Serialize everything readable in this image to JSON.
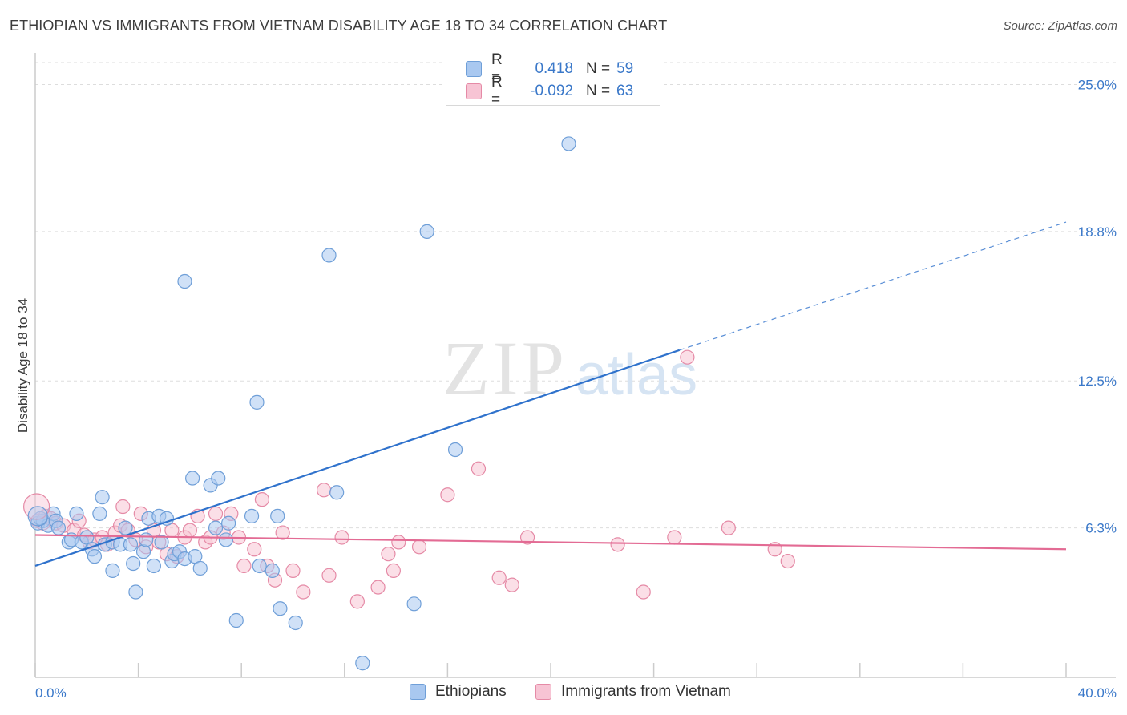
{
  "header": {
    "title": "ETHIOPIAN VS IMMIGRANTS FROM VIETNAM DISABILITY AGE 18 TO 34 CORRELATION CHART",
    "source": "Source: ZipAtlas.com"
  },
  "watermark": {
    "zip": "ZIP",
    "atlas": "atlas"
  },
  "legend": {
    "rows": [
      {
        "r_label": "R =",
        "r_value": "0.418",
        "n_label": "N =",
        "n_value": "59",
        "color": "#a9c8f0",
        "stroke": "#6f9fd8"
      },
      {
        "r_label": "R =",
        "r_value": "-0.092",
        "n_label": "N =",
        "n_value": "63",
        "color": "#f7c4d4",
        "stroke": "#e58aa6"
      }
    ]
  },
  "bottom_legend": {
    "items": [
      {
        "label": "Ethiopians",
        "color": "#a9c8f0",
        "stroke": "#6f9fd8"
      },
      {
        "label": "Immigrants from Vietnam",
        "color": "#f7c4d4",
        "stroke": "#e58aa6"
      }
    ]
  },
  "chart_data": {
    "type": "scatter",
    "title": "ETHIOPIAN VS IMMIGRANTS FROM VIETNAM DISABILITY AGE 18 TO 34 CORRELATION CHART",
    "xlabel": "",
    "ylabel": "Disability Age 18 to 34",
    "xlim": [
      0,
      40
    ],
    "ylim": [
      0,
      26.2
    ],
    "x_tick_labels": [
      "0.0%",
      "40.0%"
    ],
    "y_ticks": [
      6.3,
      12.5,
      18.8,
      25.0
    ],
    "y_tick_labels": [
      "6.3%",
      "12.5%",
      "18.8%",
      "25.0%"
    ],
    "grid": true,
    "legend_position": "top-center",
    "series": [
      {
        "name": "Ethiopians",
        "color": "#a9c8f0",
        "stroke": "#6f9fd8",
        "line_color": "#2f72cc",
        "trend": {
          "x": [
            0,
            25
          ],
          "y": [
            4.7,
            13.8
          ],
          "dashed_to": [
            40,
            19.2
          ]
        },
        "points": [
          [
            0.1,
            6.5
          ],
          [
            0.3,
            6.6
          ],
          [
            0.5,
            6.4
          ],
          [
            0.7,
            6.9
          ],
          [
            0.8,
            6.6
          ],
          [
            0.9,
            6.3
          ],
          [
            1.3,
            5.7
          ],
          [
            1.4,
            5.8
          ],
          [
            1.6,
            6.9
          ],
          [
            1.8,
            5.7
          ],
          [
            2.0,
            5.9
          ],
          [
            2.2,
            5.4
          ],
          [
            2.3,
            5.1
          ],
          [
            2.5,
            6.9
          ],
          [
            2.6,
            7.6
          ],
          [
            2.7,
            5.6
          ],
          [
            3.0,
            5.7
          ],
          [
            3.0,
            4.5
          ],
          [
            3.3,
            5.6
          ],
          [
            3.5,
            6.3
          ],
          [
            3.7,
            5.6
          ],
          [
            3.8,
            4.8
          ],
          [
            3.9,
            3.6
          ],
          [
            4.2,
            5.3
          ],
          [
            4.3,
            5.8
          ],
          [
            4.4,
            6.7
          ],
          [
            4.6,
            4.7
          ],
          [
            4.8,
            6.8
          ],
          [
            4.9,
            5.7
          ],
          [
            5.1,
            6.7
          ],
          [
            5.3,
            4.9
          ],
          [
            5.4,
            5.2
          ],
          [
            5.6,
            5.3
          ],
          [
            5.8,
            5.0
          ],
          [
            5.8,
            16.7
          ],
          [
            6.1,
            8.4
          ],
          [
            6.2,
            5.1
          ],
          [
            6.4,
            4.6
          ],
          [
            6.8,
            8.1
          ],
          [
            7.0,
            6.3
          ],
          [
            7.1,
            8.4
          ],
          [
            7.4,
            5.8
          ],
          [
            7.5,
            6.5
          ],
          [
            7.8,
            2.4
          ],
          [
            8.4,
            6.8
          ],
          [
            8.6,
            11.6
          ],
          [
            8.7,
            4.7
          ],
          [
            9.2,
            4.5
          ],
          [
            9.4,
            6.8
          ],
          [
            9.5,
            2.9
          ],
          [
            10.1,
            2.3
          ],
          [
            11.4,
            17.8
          ],
          [
            11.7,
            7.8
          ],
          [
            12.7,
            0.6
          ],
          [
            14.7,
            3.1
          ],
          [
            15.2,
            18.8
          ],
          [
            16.3,
            9.6
          ],
          [
            20.7,
            22.5
          ],
          [
            0.2,
            6.7
          ]
        ]
      },
      {
        "name": "Immigrants from Vietnam",
        "color": "#f7c4d4",
        "stroke": "#e58aa6",
        "line_color": "#e36b94",
        "trend": {
          "x": [
            0,
            40
          ],
          "y": [
            6.0,
            5.4
          ]
        },
        "points": [
          [
            0.1,
            6.6
          ],
          [
            0.3,
            6.5
          ],
          [
            0.4,
            6.8
          ],
          [
            0.6,
            6.7
          ],
          [
            0.8,
            6.5
          ],
          [
            1.1,
            6.4
          ],
          [
            1.5,
            6.2
          ],
          [
            1.7,
            6.6
          ],
          [
            1.9,
            6.0
          ],
          [
            2.1,
            5.7
          ],
          [
            2.3,
            5.8
          ],
          [
            2.6,
            5.9
          ],
          [
            2.8,
            5.6
          ],
          [
            3.1,
            6.1
          ],
          [
            3.3,
            6.4
          ],
          [
            3.4,
            7.2
          ],
          [
            3.6,
            6.2
          ],
          [
            3.9,
            5.8
          ],
          [
            4.1,
            6.9
          ],
          [
            4.3,
            5.5
          ],
          [
            4.6,
            6.2
          ],
          [
            4.8,
            5.7
          ],
          [
            5.1,
            5.2
          ],
          [
            5.3,
            6.2
          ],
          [
            5.5,
            5.1
          ],
          [
            5.8,
            5.9
          ],
          [
            6.0,
            6.2
          ],
          [
            6.3,
            6.8
          ],
          [
            6.6,
            5.7
          ],
          [
            6.8,
            5.9
          ],
          [
            7.0,
            6.9
          ],
          [
            7.3,
            6.1
          ],
          [
            7.6,
            6.9
          ],
          [
            7.9,
            5.9
          ],
          [
            8.1,
            4.7
          ],
          [
            8.5,
            5.4
          ],
          [
            8.8,
            7.5
          ],
          [
            9.0,
            4.7
          ],
          [
            9.3,
            4.1
          ],
          [
            9.6,
            6.1
          ],
          [
            10.0,
            4.5
          ],
          [
            10.4,
            3.6
          ],
          [
            11.2,
            7.9
          ],
          [
            11.4,
            4.3
          ],
          [
            11.9,
            5.9
          ],
          [
            12.5,
            3.2
          ],
          [
            13.3,
            3.8
          ],
          [
            13.7,
            5.2
          ],
          [
            13.9,
            4.5
          ],
          [
            14.1,
            5.7
          ],
          [
            14.9,
            5.5
          ],
          [
            16.0,
            7.7
          ],
          [
            17.2,
            8.8
          ],
          [
            18.0,
            4.2
          ],
          [
            18.5,
            3.9
          ],
          [
            19.1,
            5.9
          ],
          [
            22.6,
            5.6
          ],
          [
            23.6,
            3.6
          ],
          [
            24.8,
            5.9
          ],
          [
            25.3,
            13.5
          ],
          [
            26.9,
            6.3
          ],
          [
            28.7,
            5.4
          ],
          [
            29.2,
            4.9
          ]
        ]
      }
    ]
  }
}
